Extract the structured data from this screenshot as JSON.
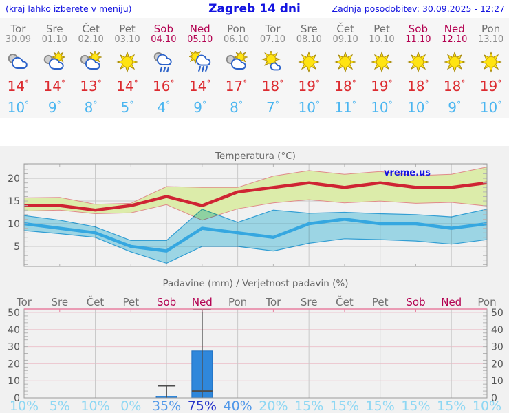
{
  "header": {
    "left_note": "(kraj lahko izberete v meniju)",
    "title": "Zagreb 14 dni",
    "updated": "Zadnja posodobitev: 30.09.2025 - 12:27"
  },
  "watermark": "vreme.us",
  "colors": {
    "header_blue": "#1414e0",
    "day_gray": "#6f6f6f",
    "date_gray": "#8c8c8c",
    "weekend_red": "#b30050",
    "tmax_text": "#dc2b30",
    "tmin_text": "#4ab5f0",
    "chart_title_gray": "#666666",
    "tmax_line": "#cf2433",
    "tmax_band_fill": "#dcecaa",
    "tmax_band_edge": "#e08a8a",
    "tmin_line": "#35a7e0",
    "tmin_band_fill": "#a5e2f2",
    "grid_gray": "#c9c9c9",
    "grid_pink": "#ecc5ce",
    "axis_border": "#9a9a9a",
    "axis_pink": "#e87f9f",
    "bar_fill": "#2f87db",
    "bar_edge": "#1f6fc0",
    "whisker": "#4d4d4d",
    "prob_low": "#8ed7f3",
    "prob_mid": "#4f97e8",
    "prob_high": "#2633c9",
    "tick_gray": "#b5b5b5",
    "ylabel_gray": "#555555"
  },
  "days": [
    {
      "name": "Tor",
      "date": "30.09",
      "weekend": false,
      "icon": "cloudy",
      "tmax": 14,
      "tmin": 10,
      "precip_prob": 10
    },
    {
      "name": "Sre",
      "date": "01.10",
      "weekend": false,
      "icon": "partly-cloudy",
      "tmax": 14,
      "tmin": 9,
      "precip_prob": 5
    },
    {
      "name": "Čet",
      "date": "02.10",
      "weekend": false,
      "icon": "partly-cloudy",
      "tmax": 13,
      "tmin": 8,
      "precip_prob": 10
    },
    {
      "name": "Pet",
      "date": "03.10",
      "weekend": false,
      "icon": "sunny",
      "tmax": 14,
      "tmin": 5,
      "precip_prob": 0
    },
    {
      "name": "Sob",
      "date": "04.10",
      "weekend": true,
      "icon": "rain",
      "tmax": 16,
      "tmin": 4,
      "precip_prob": 35
    },
    {
      "name": "Ned",
      "date": "05.10",
      "weekend": true,
      "icon": "sun-rain",
      "tmax": 14,
      "tmin": 9,
      "precip_prob": 75
    },
    {
      "name": "Pon",
      "date": "06.10",
      "weekend": false,
      "icon": "partly-cloudy",
      "tmax": 17,
      "tmin": 8,
      "precip_prob": 40
    },
    {
      "name": "Tor",
      "date": "07.10",
      "weekend": false,
      "icon": "mostly-sunny",
      "tmax": 18,
      "tmin": 7,
      "precip_prob": 20
    },
    {
      "name": "Sre",
      "date": "08.10",
      "weekend": false,
      "icon": "sunny",
      "tmax": 19,
      "tmin": 10,
      "precip_prob": 15
    },
    {
      "name": "Čet",
      "date": "09.10",
      "weekend": false,
      "icon": "sunny",
      "tmax": 18,
      "tmin": 11,
      "precip_prob": 15
    },
    {
      "name": "Pet",
      "date": "10.10",
      "weekend": false,
      "icon": "sunny",
      "tmax": 19,
      "tmin": 10,
      "precip_prob": 15
    },
    {
      "name": "Sob",
      "date": "11.10",
      "weekend": true,
      "icon": "sunny",
      "tmax": 18,
      "tmin": 10,
      "precip_prob": 15
    },
    {
      "name": "Ned",
      "date": "12.10",
      "weekend": true,
      "icon": "sunny",
      "tmax": 18,
      "tmin": 9,
      "precip_prob": 15
    },
    {
      "name": "Pon",
      "date": "13.10",
      "weekend": false,
      "icon": "sunny",
      "tmax": 19,
      "tmin": 10,
      "precip_prob": 10
    }
  ],
  "chart_data": [
    {
      "type": "line",
      "title": "Temperatura (°C)",
      "categories": [
        "Tor 30.09",
        "Sre 01.10",
        "Čet 02.10",
        "Pet 03.10",
        "Sob 04.10",
        "Ned 05.10",
        "Pon 06.10",
        "Tor 07.10",
        "Sre 08.10",
        "Čet 09.10",
        "Pet 10.10",
        "Sob 11.10",
        "Ned 12.10",
        "Pon 13.10"
      ],
      "ylim": [
        0.6,
        23.2
      ],
      "yticks": [
        5,
        10,
        15,
        20
      ],
      "grid": true,
      "series": [
        {
          "name": "tmax",
          "values": [
            14,
            14,
            13,
            14,
            16,
            14,
            17,
            18,
            19,
            18,
            19,
            18,
            18,
            19
          ]
        },
        {
          "name": "tmax_band_upper",
          "values": [
            15.7,
            15.8,
            14.3,
            14.5,
            18.2,
            18.0,
            18.0,
            20.5,
            21.7,
            20.9,
            21.5,
            20.6,
            20.9,
            22.5
          ]
        },
        {
          "name": "tmax_band_lower",
          "values": [
            12.8,
            13.0,
            12.2,
            12.4,
            14.2,
            10.8,
            13.3,
            14.6,
            15.3,
            14.6,
            15.0,
            14.5,
            14.7,
            13.9
          ]
        },
        {
          "name": "tmin",
          "values": [
            10,
            9,
            8,
            5,
            4,
            9,
            8,
            7,
            10,
            11,
            10,
            10,
            9,
            10
          ]
        },
        {
          "name": "tmin_band_upper",
          "values": [
            11.8,
            10.8,
            9.3,
            6.3,
            6.3,
            13.2,
            10.3,
            13.0,
            12.3,
            12.5,
            12.2,
            12.0,
            11.5,
            13.2
          ]
        },
        {
          "name": "tmin_band_lower",
          "values": [
            8.5,
            7.8,
            7.0,
            3.8,
            1.3,
            5.0,
            5.0,
            4.0,
            5.7,
            6.7,
            6.5,
            6.2,
            5.5,
            6.5
          ]
        }
      ],
      "annotations": [
        "vreme.us"
      ]
    },
    {
      "type": "bar",
      "title": "Padavine (mm) / Verjetnost padavin (%)",
      "categories": [
        "Tor",
        "Sre",
        "Čet",
        "Pet",
        "Sob",
        "Ned",
        "Pon",
        "Tor",
        "Sre",
        "Čet",
        "Pet",
        "Sob",
        "Ned",
        "Pon"
      ],
      "values_mm": [
        0,
        0,
        0,
        0,
        1,
        27.5,
        0,
        0,
        0,
        0,
        0,
        0,
        0,
        0
      ],
      "whiskers": [
        null,
        null,
        null,
        null,
        {
          "low": 0,
          "high": 7
        },
        {
          "low": 4,
          "high": 52
        },
        null,
        null,
        null,
        null,
        null,
        null,
        null,
        null
      ],
      "probabilities_pct": [
        10,
        5,
        10,
        0,
        35,
        75,
        40,
        20,
        15,
        15,
        15,
        15,
        15,
        10
      ],
      "ylim": [
        0,
        52
      ],
      "yticks": [
        0,
        10,
        20,
        30,
        40,
        50
      ],
      "grid": true
    }
  ]
}
